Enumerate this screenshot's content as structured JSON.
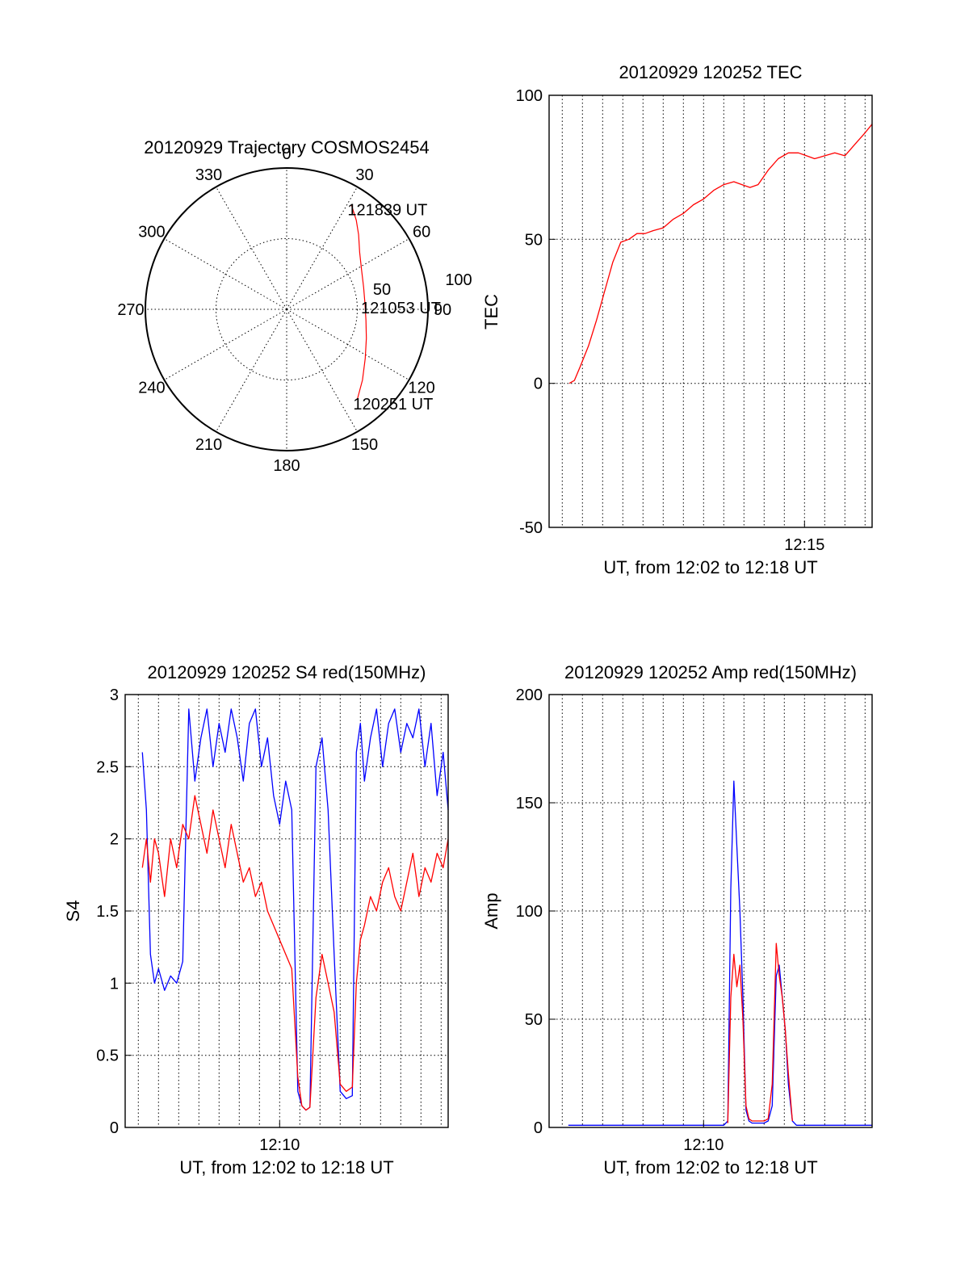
{
  "colors": {
    "red": "#ff0000",
    "blue": "#0000ff",
    "axis": "#000000"
  },
  "chart_data": [
    {
      "id": "trajectory",
      "type": "polar",
      "title": "20120929 Trajectory COSMOS2454",
      "azimuth_labels": [
        "0",
        "30",
        "60",
        "90",
        "120",
        "150",
        "180",
        "210",
        "240",
        "270",
        "300",
        "330"
      ],
      "radial_labels": [
        "50",
        "100"
      ],
      "track": {
        "series_color": "red",
        "points": [
          {
            "az": 32,
            "el": 12,
            "label": "121839 UT"
          },
          {
            "az": 38,
            "el": 18
          },
          {
            "az": 44,
            "el": 24
          },
          {
            "az": 52,
            "el": 31
          },
          {
            "az": 62,
            "el": 36
          },
          {
            "az": 74,
            "el": 39
          },
          {
            "az": 86,
            "el": 40,
            "label": "121053 UT"
          },
          {
            "az": 98,
            "el": 39
          },
          {
            "az": 110,
            "el": 36
          },
          {
            "az": 122,
            "el": 31
          },
          {
            "az": 133,
            "el": 24
          },
          {
            "az": 142,
            "el": 17,
            "label": "120251 UT"
          }
        ]
      }
    },
    {
      "id": "tec",
      "type": "line",
      "title": "20120929 120252 TEC",
      "ylabel": "TEC",
      "xlabel": "UT, from 12:02 to 12:18 UT",
      "xlim": [
        2.35,
        18.35
      ],
      "ylim": [
        -50,
        100
      ],
      "yticks": [
        -50,
        0,
        50,
        100
      ],
      "xtick_labels": [
        {
          "x": 15,
          "label": "12:15"
        }
      ],
      "grid": true,
      "series": [
        {
          "color": "red",
          "x": [
            3.35,
            3.6,
            3.9,
            4.3,
            4.7,
            5.1,
            5.5,
            5.9,
            6.3,
            6.7,
            7.1,
            7.5,
            8.0,
            8.5,
            9.0,
            9.5,
            10.0,
            10.5,
            11.0,
            11.5,
            11.9,
            12.3,
            12.7,
            13.2,
            13.7,
            14.2,
            14.7,
            15.1,
            15.5,
            16.0,
            16.5,
            17.0,
            17.5,
            18.0,
            18.35
          ],
          "y": [
            0,
            1,
            6,
            13,
            22,
            32,
            42,
            49,
            50,
            52,
            52,
            53,
            54,
            57,
            59,
            62,
            64,
            67,
            69,
            70,
            69,
            68,
            69,
            74,
            78,
            80,
            80,
            79,
            78,
            79,
            80,
            79,
            83,
            87,
            90
          ]
        }
      ]
    },
    {
      "id": "s4",
      "type": "line",
      "title": "20120929 120252 S4 red(150MHz)",
      "ylabel": "S4",
      "xlabel": "UT, from 12:02 to 12:18 UT",
      "xlim": [
        2.35,
        18.35
      ],
      "ylim": [
        0,
        3
      ],
      "yticks": [
        0,
        0.5,
        1,
        1.5,
        2,
        2.5,
        3
      ],
      "xtick_labels": [
        {
          "x": 10,
          "label": "12:10"
        }
      ],
      "grid": true,
      "series": [
        {
          "color": "blue",
          "x": [
            3.2,
            3.4,
            3.6,
            3.8,
            4.0,
            4.3,
            4.6,
            4.9,
            5.2,
            5.5,
            5.8,
            6.1,
            6.4,
            6.7,
            7.0,
            7.3,
            7.6,
            7.9,
            8.2,
            8.5,
            8.8,
            9.1,
            9.4,
            9.7,
            10.0,
            10.3,
            10.6,
            10.9,
            11.1,
            11.3,
            11.5,
            11.8,
            12.1,
            12.4,
            12.7,
            13.0,
            13.3,
            13.6,
            13.8,
            14.0,
            14.2,
            14.5,
            14.8,
            15.1,
            15.4,
            15.7,
            16.0,
            16.3,
            16.6,
            16.9,
            17.2,
            17.5,
            17.8,
            18.1,
            18.35
          ],
          "y": [
            2.6,
            2.2,
            1.2,
            1.0,
            1.1,
            0.95,
            1.05,
            1.0,
            1.15,
            2.9,
            2.4,
            2.7,
            2.9,
            2.5,
            2.8,
            2.6,
            2.9,
            2.7,
            2.4,
            2.8,
            2.9,
            2.5,
            2.7,
            2.3,
            2.1,
            2.4,
            2.2,
            0.25,
            0.15,
            0.12,
            0.14,
            2.5,
            2.7,
            2.2,
            1.2,
            0.25,
            0.2,
            0.22,
            2.6,
            2.8,
            2.4,
            2.7,
            2.9,
            2.5,
            2.8,
            2.9,
            2.6,
            2.8,
            2.7,
            2.9,
            2.5,
            2.8,
            2.3,
            2.6,
            2.2
          ]
        },
        {
          "color": "red",
          "x": [
            3.2,
            3.4,
            3.6,
            3.8,
            4.0,
            4.3,
            4.6,
            4.9,
            5.2,
            5.5,
            5.8,
            6.1,
            6.4,
            6.7,
            7.0,
            7.3,
            7.6,
            7.9,
            8.2,
            8.5,
            8.8,
            9.1,
            9.4,
            9.7,
            10.0,
            10.3,
            10.6,
            10.9,
            11.1,
            11.3,
            11.5,
            11.8,
            12.1,
            12.4,
            12.7,
            13.0,
            13.3,
            13.6,
            13.8,
            14.0,
            14.2,
            14.5,
            14.8,
            15.1,
            15.4,
            15.7,
            16.0,
            16.3,
            16.6,
            16.9,
            17.2,
            17.5,
            17.8,
            18.1,
            18.35
          ],
          "y": [
            1.8,
            2.0,
            1.7,
            2.0,
            1.9,
            1.6,
            2.0,
            1.8,
            2.1,
            2.0,
            2.3,
            2.1,
            1.9,
            2.2,
            2.0,
            1.8,
            2.1,
            1.9,
            1.7,
            1.8,
            1.6,
            1.7,
            1.5,
            1.4,
            1.3,
            1.2,
            1.1,
            0.35,
            0.15,
            0.12,
            0.14,
            0.9,
            1.2,
            1.0,
            0.8,
            0.3,
            0.25,
            0.28,
            1.0,
            1.3,
            1.4,
            1.6,
            1.5,
            1.7,
            1.8,
            1.6,
            1.5,
            1.7,
            1.9,
            1.6,
            1.8,
            1.7,
            1.9,
            1.8,
            2.0
          ]
        }
      ]
    },
    {
      "id": "amp",
      "type": "line",
      "title": "20120929 120252 Amp red(150MHz)",
      "ylabel": "Amp",
      "xlabel": "UT, from 12:02 to 12:18 UT",
      "xlim": [
        2.35,
        18.35
      ],
      "ylim": [
        0,
        200
      ],
      "yticks": [
        0,
        50,
        100,
        150,
        200
      ],
      "xtick_labels": [
        {
          "x": 10,
          "label": "12:10"
        }
      ],
      "grid": true,
      "series": [
        {
          "color": "blue",
          "x": [
            3.3,
            5.0,
            7.0,
            9.0,
            11.0,
            11.2,
            11.35,
            11.5,
            11.65,
            11.8,
            11.95,
            12.1,
            12.25,
            12.4,
            12.6,
            12.8,
            13.0,
            13.2,
            13.4,
            13.6,
            13.75,
            13.9,
            14.05,
            14.2,
            14.4,
            14.6,
            15.0,
            16.5,
            18.35
          ],
          "y": [
            1,
            1,
            1,
            1,
            1,
            3,
            110,
            160,
            130,
            100,
            60,
            8,
            3,
            2,
            2,
            2,
            2,
            3,
            10,
            70,
            75,
            60,
            45,
            20,
            3,
            1,
            1,
            1,
            1
          ]
        },
        {
          "color": "red",
          "x": [
            11.2,
            11.35,
            11.5,
            11.65,
            11.8,
            11.95,
            12.1,
            12.25,
            12.4,
            12.6,
            12.8,
            13.0,
            13.2,
            13.4,
            13.6,
            13.75,
            13.9,
            14.05,
            14.2,
            14.4
          ],
          "y": [
            2,
            60,
            80,
            65,
            75,
            50,
            10,
            4,
            3,
            3,
            3,
            3,
            4,
            20,
            85,
            70,
            60,
            45,
            25,
            3
          ]
        }
      ]
    }
  ]
}
